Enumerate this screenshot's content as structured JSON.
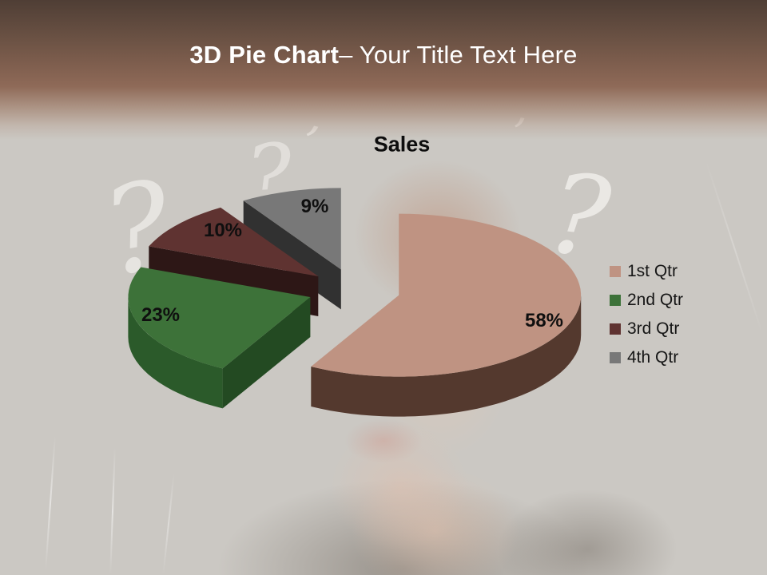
{
  "slide": {
    "title_bold": "3D Pie Chart",
    "title_rest": "– Your Title Text Here"
  },
  "chart_data": {
    "type": "pie",
    "style": "3d-exploded",
    "title": "Sales",
    "categories": [
      "1st Qtr",
      "2nd Qtr",
      "3rd Qtr",
      "4th Qtr"
    ],
    "values": [
      58,
      23,
      10,
      9
    ],
    "labels": [
      "58%",
      "23%",
      "10%",
      "9%"
    ],
    "colors": [
      "#bf9382",
      "#3d7239",
      "#5f3331",
      "#787878"
    ],
    "side_colors": [
      "#54392e",
      "#2b5a2a",
      "#371c1b",
      "#3c3c3c"
    ],
    "legend_position": "right",
    "start_angle_deg": 0,
    "direction": "clockwise"
  },
  "decor": {
    "chalk_glyph": "?",
    "tick_glyph": "’"
  }
}
